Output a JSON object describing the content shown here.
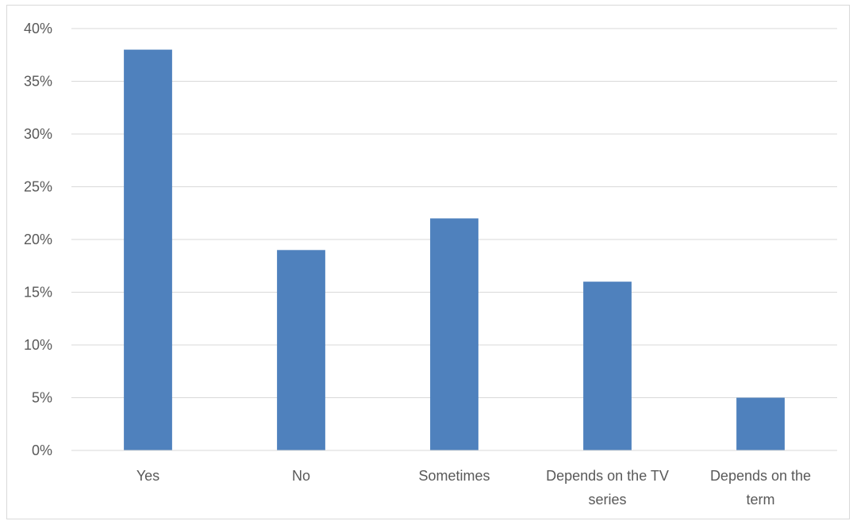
{
  "chart_data": {
    "type": "bar",
    "title": "",
    "xlabel": "",
    "ylabel": "",
    "categories": [
      [
        "Yes"
      ],
      [
        "No"
      ],
      [
        "Sometimes"
      ],
      [
        "Depends on the TV",
        "series"
      ],
      [
        "Depends on the",
        "term"
      ]
    ],
    "values": [
      38,
      19,
      22,
      16,
      5
    ],
    "ylim": [
      0,
      40
    ],
    "yticks": [
      0,
      5,
      10,
      15,
      20,
      25,
      30,
      35,
      40
    ],
    "ytick_labels": [
      "0%",
      "5%",
      "10%",
      "15%",
      "20%",
      "25%",
      "30%",
      "35%",
      "40%"
    ],
    "grid": true,
    "legend": "none",
    "bar_color": "#4f81bd",
    "grid_color": "#d9d9d9"
  }
}
